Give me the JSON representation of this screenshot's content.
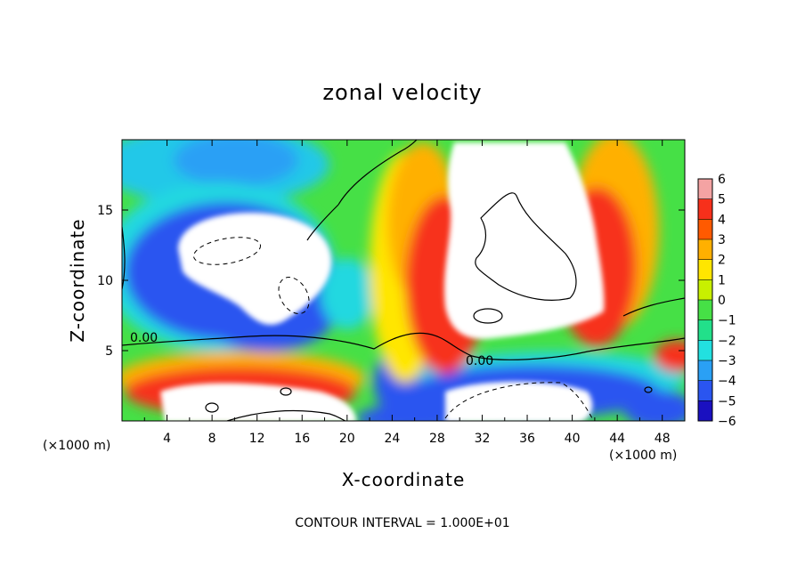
{
  "chart_data": {
    "type": "heatmap",
    "title": "zonal velocity",
    "xlabel": "X-coordinate",
    "ylabel": "Z-coordinate",
    "x_units": "(×1000 m)",
    "y_units": "(×1000 m)",
    "xlim": [
      0,
      50
    ],
    "ylim": [
      0,
      20
    ],
    "x_ticks": [
      4,
      8,
      12,
      16,
      20,
      24,
      28,
      32,
      36,
      40,
      44,
      48
    ],
    "y_ticks": [
      5,
      10,
      15
    ],
    "colorbar": {
      "levels": [
        6,
        5,
        4,
        3,
        2,
        1,
        0,
        -1,
        -2,
        -3,
        -4,
        -5,
        -6
      ],
      "colors": [
        "#f4a3a3",
        "#f7301b",
        "#ff5a00",
        "#ffb000",
        "#ffe600",
        "#c8f000",
        "#46e046",
        "#22e08a",
        "#22e0e0",
        "#2aa0f5",
        "#2a55f0",
        "#1a10c0",
        "#7a10a8"
      ],
      "saturated_color": "#ffffff"
    },
    "contour_labels": [
      "0.00",
      "0.00"
    ],
    "footnote": "CONTOUR INTERVAL = 1.000E+01"
  }
}
